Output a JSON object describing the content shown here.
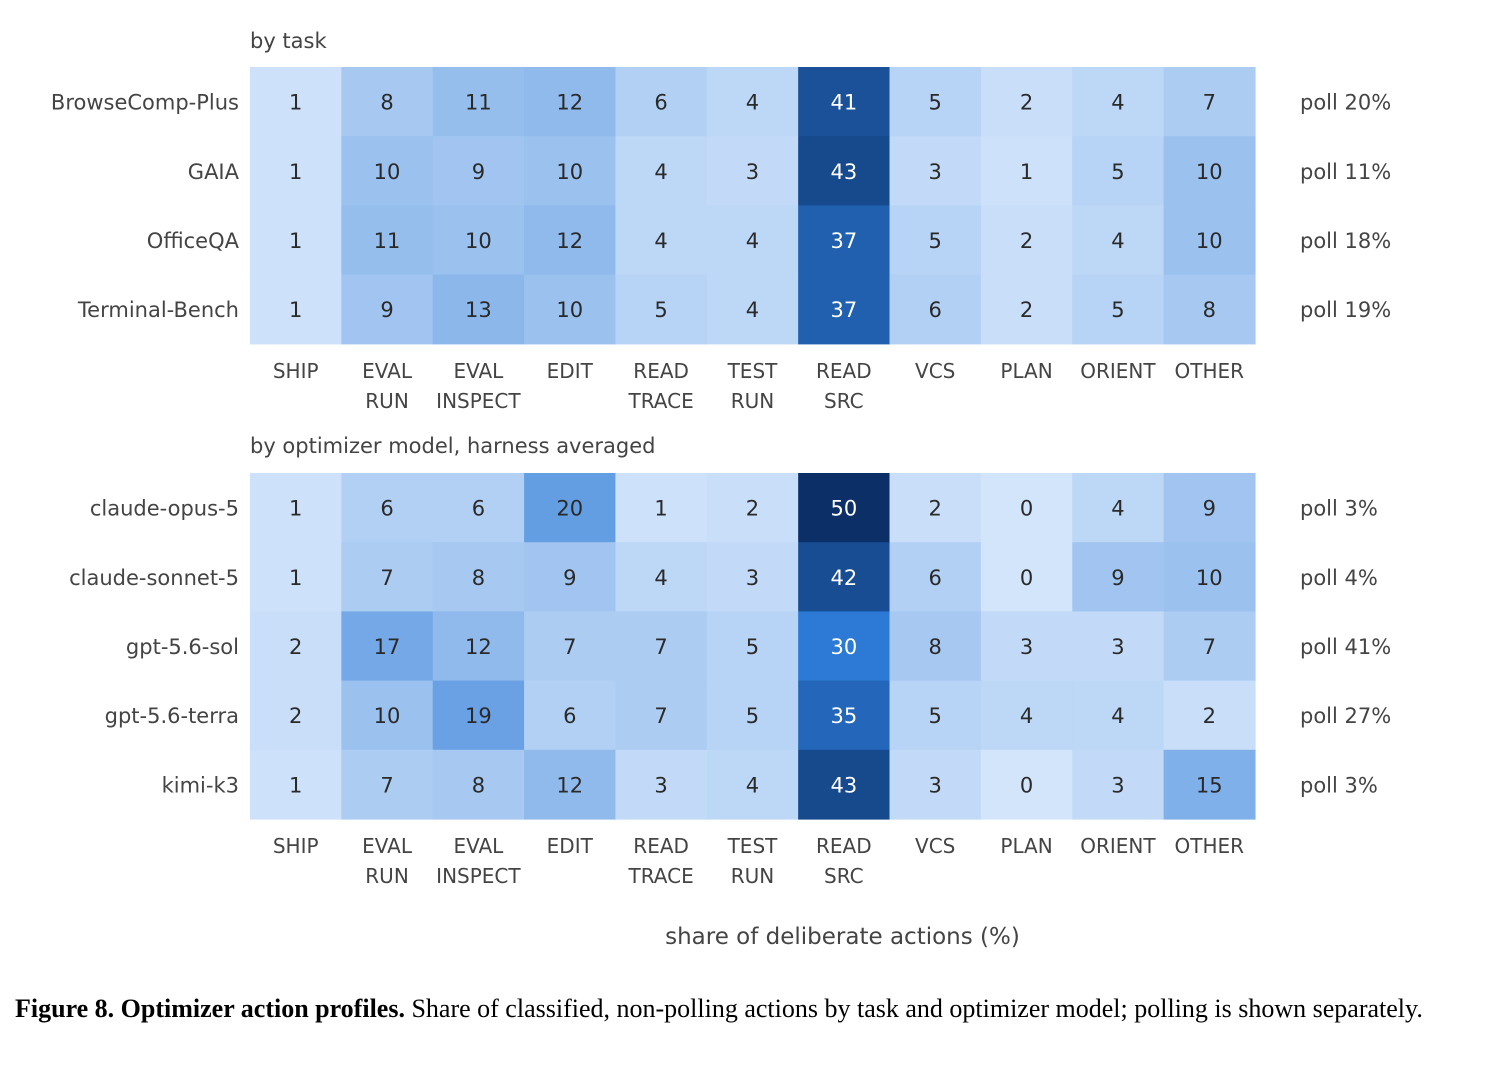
{
  "chart_data": [
    {
      "type": "heatmap",
      "title": "by task",
      "columns": [
        "SHIP",
        "EVAL RUN",
        "EVAL INSPECT",
        "EDIT",
        "READ TRACE",
        "TEST RUN",
        "READ SRC",
        "VCS",
        "PLAN",
        "ORIENT",
        "OTHER"
      ],
      "rows": [
        "BrowseComp-Plus",
        "GAIA",
        "OfficeQA",
        "Terminal-Bench"
      ],
      "values": [
        [
          1,
          8,
          11,
          12,
          6,
          4,
          41,
          5,
          2,
          4,
          7
        ],
        [
          1,
          10,
          9,
          10,
          4,
          3,
          43,
          3,
          1,
          5,
          10
        ],
        [
          1,
          11,
          10,
          12,
          4,
          4,
          37,
          5,
          2,
          4,
          10
        ],
        [
          1,
          9,
          13,
          10,
          5,
          4,
          37,
          6,
          2,
          5,
          8
        ]
      ],
      "row_annotations": [
        "poll 20%",
        "poll 11%",
        "poll 18%",
        "poll 19%"
      ]
    },
    {
      "type": "heatmap",
      "title": "by optimizer model, harness averaged",
      "columns": [
        "SHIP",
        "EVAL RUN",
        "EVAL INSPECT",
        "EDIT",
        "READ TRACE",
        "TEST RUN",
        "READ SRC",
        "VCS",
        "PLAN",
        "ORIENT",
        "OTHER"
      ],
      "rows": [
        "claude-opus-5",
        "claude-sonnet-5",
        "gpt-5.6-sol",
        "gpt-5.6-terra",
        "kimi-k3"
      ],
      "values": [
        [
          1,
          6,
          6,
          20,
          1,
          2,
          50,
          2,
          0,
          4,
          9
        ],
        [
          1,
          7,
          8,
          9,
          4,
          3,
          42,
          6,
          0,
          9,
          10
        ],
        [
          2,
          17,
          12,
          7,
          7,
          5,
          30,
          8,
          3,
          3,
          7
        ],
        [
          2,
          10,
          19,
          6,
          7,
          5,
          35,
          5,
          4,
          4,
          2
        ],
        [
          1,
          7,
          8,
          12,
          3,
          4,
          43,
          3,
          0,
          3,
          15
        ]
      ],
      "row_annotations": [
        "poll 3%",
        "poll 4%",
        "poll 41%",
        "poll 27%",
        "poll 3%"
      ],
      "xlabel": "share of deliberate actions (%)"
    }
  ],
  "caption": {
    "label": "Figure 8. Optimizer action profiles.",
    "text": " Share of classified, non-polling actions by task and optimizer model; polling is shown separately."
  },
  "colors": {
    "low": "#d3e5fb",
    "high": "#0b2f66",
    "text_dark": "#2a2a2a",
    "text_light": "#ffffff"
  }
}
